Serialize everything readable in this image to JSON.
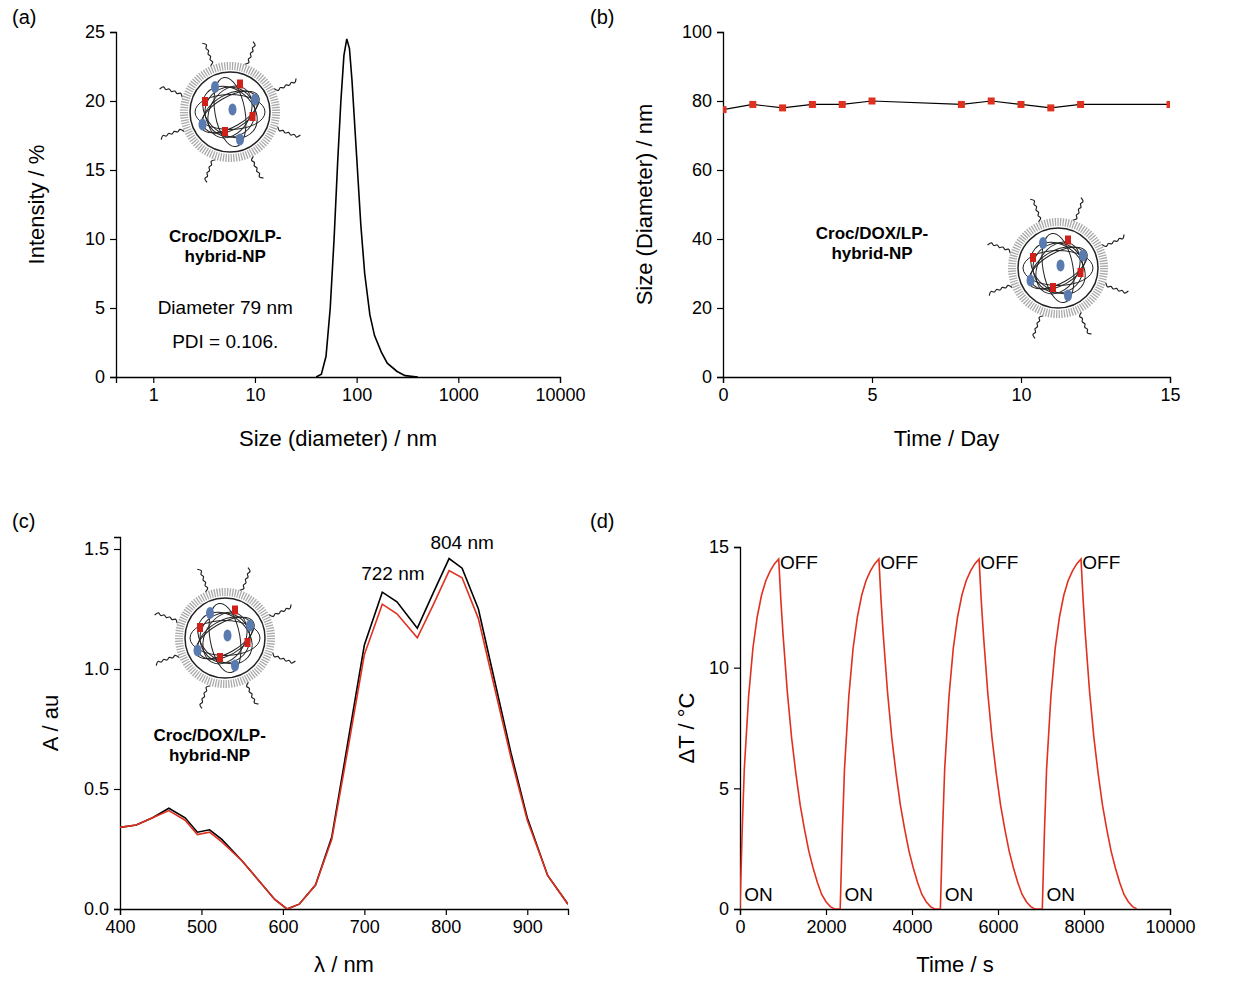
{
  "chart_data": [
    {
      "panel": "(a)",
      "type": "line",
      "log": "x",
      "x_label": "Size (diameter) / nm",
      "y_label": "Intensity / %",
      "xlim": [
        0.43,
        10000
      ],
      "xticks": [
        1,
        10,
        100,
        1000,
        10000
      ],
      "ylim": [
        0,
        25
      ],
      "yticks": [
        0,
        5,
        10,
        15,
        20,
        25
      ],
      "x": [
        40,
        45,
        50,
        55,
        60,
        65,
        70,
        75,
        80,
        85,
        90,
        100,
        110,
        120,
        135,
        150,
        175,
        200,
        250,
        300,
        400
      ],
      "series": [
        {
          "color": "#000000",
          "line_style": "solid",
          "values": [
            0,
            0.2,
            1.5,
            5,
            10,
            15.5,
            20,
            23.3,
            24.5,
            23.8,
            21.5,
            16,
            11,
            7.5,
            4.5,
            3,
            1.8,
            1,
            0.4,
            0.1,
            0
          ]
        }
      ],
      "annotations": [
        {
          "text": "Croc/DOX/LP-hybrid-NP",
          "x": 5.1,
          "y": 9.8
        },
        {
          "text": "Diameter 79 nm",
          "x": 5.1,
          "y": 4.6
        },
        {
          "text": "PDI = 0.106.",
          "x": 5.1,
          "y": 2.1
        }
      ]
    },
    {
      "panel": "(b)",
      "type": "line",
      "x_label": "Time / Day",
      "y_label": "Size (Diameter) / nm",
      "xlim": [
        0,
        15
      ],
      "xticks": [
        0,
        5,
        10,
        15
      ],
      "ylim": [
        0,
        100
      ],
      "yticks": [
        0,
        20,
        40,
        60,
        80,
        100
      ],
      "x": [
        0,
        1,
        2,
        3,
        4,
        5,
        8,
        9,
        10,
        11,
        12,
        15
      ],
      "series": [
        {
          "color": "#e03020",
          "marker": "square",
          "line_style": "solid",
          "values": [
            77.5,
            79,
            78,
            79,
            79,
            80,
            79,
            80,
            79,
            78,
            79,
            79
          ]
        }
      ],
      "annotations": [
        {
          "text": "Croc/DOX/LP-hybrid-NP",
          "x": 5.0,
          "y": 40
        }
      ]
    },
    {
      "panel": "(c)",
      "type": "line",
      "x_label": "λ / nm",
      "y_label": "A / au",
      "xlim": [
        400,
        950
      ],
      "xticks": [
        400,
        500,
        600,
        700,
        800,
        900
      ],
      "ylim": [
        0,
        1.55
      ],
      "yticks": [
        {
          "value": 0,
          "label": "0.0"
        },
        0.5,
        {
          "value": 1,
          "label": "1.0"
        },
        1.5
      ],
      "x": [
        400,
        420,
        440,
        460,
        480,
        495,
        510,
        525,
        550,
        570,
        590,
        605,
        620,
        640,
        660,
        680,
        700,
        722,
        740,
        765,
        785,
        804,
        820,
        840,
        860,
        880,
        900,
        925,
        950
      ],
      "series": [
        {
          "color": "#000000",
          "line_style": "solid",
          "values": [
            0.34,
            0.35,
            0.38,
            0.42,
            0.38,
            0.32,
            0.33,
            0.29,
            0.2,
            0.12,
            0.04,
            0.0,
            0.02,
            0.1,
            0.3,
            0.7,
            1.1,
            1.32,
            1.28,
            1.17,
            1.32,
            1.46,
            1.42,
            1.25,
            0.95,
            0.65,
            0.38,
            0.14,
            0.02
          ]
        },
        {
          "color": "#e03020",
          "line_style": "solid",
          "values": [
            0.34,
            0.35,
            0.38,
            0.41,
            0.37,
            0.31,
            0.32,
            0.28,
            0.2,
            0.12,
            0.04,
            0.0,
            0.02,
            0.1,
            0.29,
            0.67,
            1.06,
            1.27,
            1.23,
            1.13,
            1.27,
            1.41,
            1.38,
            1.21,
            0.92,
            0.63,
            0.37,
            0.14,
            0.02
          ]
        }
      ],
      "annotations": [
        {
          "text": "722 nm",
          "x": 735,
          "y": 1.37
        },
        {
          "text": "804 nm",
          "x": 820,
          "y": 1.5
        },
        {
          "text": "Croc/DOX/LP-hybrid-NP",
          "x": 510,
          "y": 0.7
        }
      ]
    },
    {
      "panel": "(d)",
      "type": "line",
      "x_label": "Time / s",
      "y_label": "ΔT / °C",
      "xlim": [
        0,
        10000
      ],
      "xticks": [
        0,
        2000,
        4000,
        6000,
        8000,
        10000
      ],
      "ylim": [
        0,
        15
      ],
      "yticks": [
        0,
        5,
        10,
        15
      ],
      "x": [
        0,
        50,
        100,
        200,
        300,
        400,
        500,
        600,
        700,
        800,
        900,
        950,
        1000,
        1100,
        1200,
        1300,
        1400,
        1500,
        1600,
        1700,
        1800,
        1900,
        2000,
        2100,
        2200,
        2330,
        2380,
        2430,
        2530,
        2630,
        2730,
        2830,
        2930,
        3030,
        3130,
        3230,
        3280,
        3330,
        3430,
        3530,
        3630,
        3730,
        3830,
        3930,
        4030,
        4130,
        4230,
        4330,
        4430,
        4530,
        4660,
        4710,
        4760,
        4860,
        4960,
        5060,
        5160,
        5260,
        5360,
        5460,
        5560,
        5610,
        5660,
        5760,
        5860,
        5960,
        6060,
        6160,
        6260,
        6360,
        6460,
        6560,
        6660,
        6760,
        6860,
        7030,
        7080,
        7130,
        7230,
        7330,
        7430,
        7530,
        7630,
        7730,
        7830,
        7930,
        7980,
        8030,
        8130,
        8230,
        8330,
        8430,
        8530,
        8630,
        8730,
        8830,
        8930,
        9030,
        9130,
        9230
      ],
      "series": [
        {
          "color": "#e03020",
          "line_style": "solid",
          "values": [
            0,
            3.2,
            5.8,
            8.8,
            10.8,
            12.1,
            13.0,
            13.6,
            14.0,
            14.3,
            14.5,
            12.8,
            11.4,
            9.0,
            7.1,
            5.6,
            4.3,
            3.3,
            2.4,
            1.7,
            1.1,
            0.6,
            0.3,
            0.1,
            0,
            0,
            3.2,
            5.8,
            8.8,
            10.8,
            12.1,
            13.0,
            13.6,
            14.0,
            14.3,
            14.5,
            12.8,
            11.4,
            9.0,
            7.1,
            5.6,
            4.3,
            3.3,
            2.4,
            1.7,
            1.1,
            0.6,
            0.3,
            0.1,
            0,
            0,
            3.2,
            5.8,
            8.8,
            10.8,
            12.1,
            13.0,
            13.6,
            14.0,
            14.3,
            14.5,
            12.8,
            11.4,
            9.0,
            7.1,
            5.6,
            4.3,
            3.3,
            2.4,
            1.7,
            1.1,
            0.6,
            0.3,
            0.1,
            0,
            0,
            3.2,
            5.8,
            8.8,
            10.8,
            12.1,
            13.0,
            13.6,
            14.0,
            14.3,
            14.5,
            12.8,
            11.4,
            9.0,
            7.1,
            5.6,
            4.3,
            3.3,
            2.4,
            1.7,
            1.1,
            0.6,
            0.3,
            0.1,
            0
          ]
        }
      ],
      "annotations": [
        {
          "text": "ON",
          "x": 100,
          "y": 0.35
        },
        {
          "text": "ON",
          "x": 2430,
          "y": 0.35
        },
        {
          "text": "ON",
          "x": 4760,
          "y": 0.35
        },
        {
          "text": "ON",
          "x": 7130,
          "y": 0.35
        },
        {
          "text": "OFF",
          "x": 930,
          "y": 14.1
        },
        {
          "text": "OFF",
          "x": 3260,
          "y": 14.1
        },
        {
          "text": "OFF",
          "x": 5590,
          "y": 14.1
        },
        {
          "text": "OFF",
          "x": 7960,
          "y": 14.1
        }
      ]
    }
  ]
}
